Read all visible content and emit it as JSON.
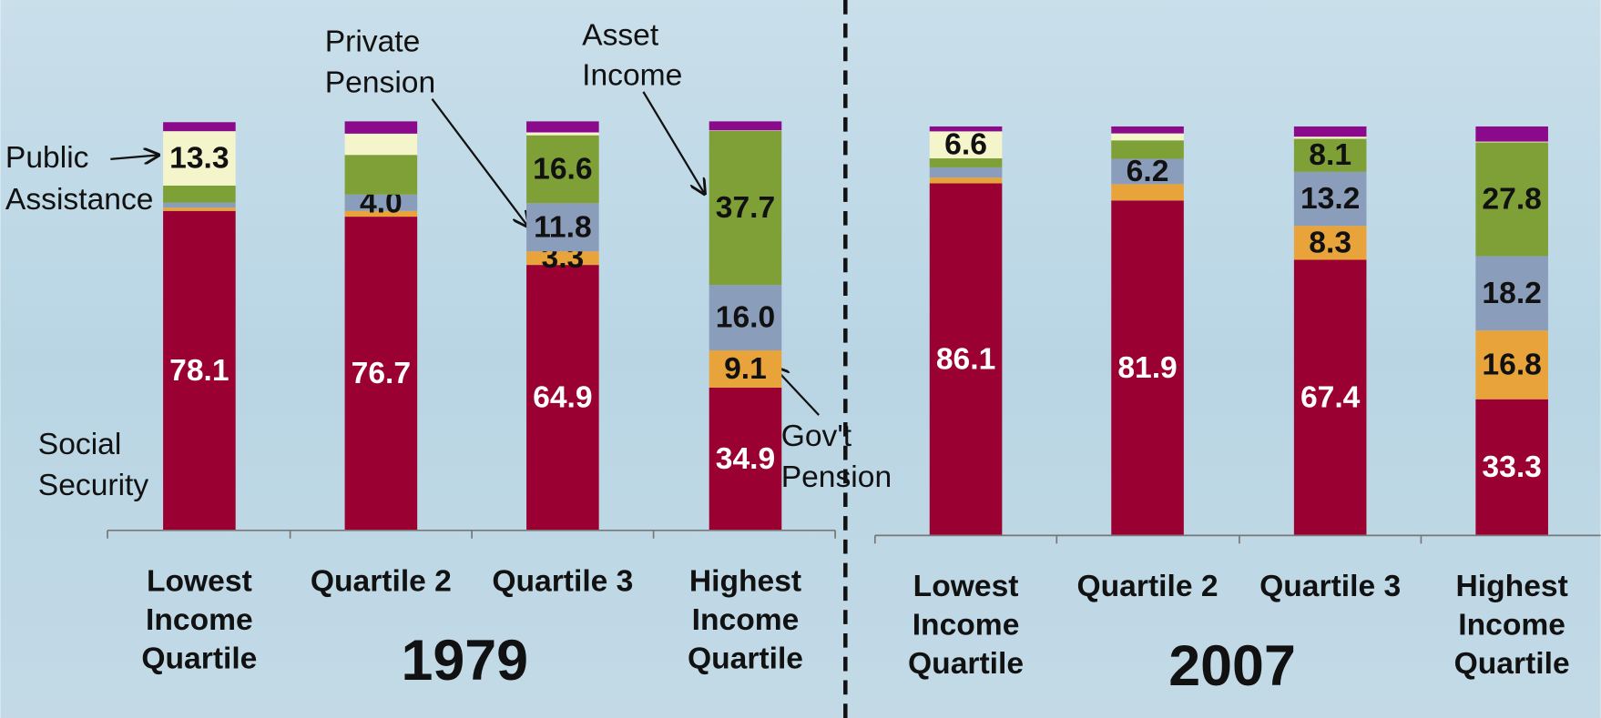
{
  "chart_data": [
    {
      "type": "stacked_bar",
      "title": "1979",
      "categories": [
        [
          "Lowest",
          "Income",
          "Quartile"
        ],
        [
          "Quartile 2"
        ],
        [
          "Quartile 3"
        ],
        [
          "Highest",
          "Income",
          "Quartile"
        ]
      ],
      "ylim": [
        0,
        100
      ],
      "series": [
        {
          "name": [
            "Social",
            "Security"
          ],
          "color": "#9b0032",
          "values": [
            78.1,
            76.7,
            64.9,
            34.9
          ],
          "value_labels": [
            "78.1",
            "76.7",
            "64.9",
            "34.9"
          ]
        },
        {
          "name": [
            "Gov't",
            "Pension"
          ],
          "color": "#e8a33a",
          "values": [
            0.8,
            1.4,
            3.3,
            9.1
          ],
          "value_labels": [
            null,
            null,
            "3.3",
            "9.1"
          ]
        },
        {
          "name": [
            "Private",
            "Pension"
          ],
          "color": "#8a9dba",
          "values": [
            1.2,
            4.0,
            11.8,
            16.0
          ],
          "value_labels": [
            null,
            "4.0",
            "11.8",
            "16.0"
          ]
        },
        {
          "name": [
            "Asset",
            "Income"
          ],
          "color": "#7ea037",
          "values": [
            4.2,
            9.7,
            16.6,
            37.7
          ],
          "value_labels": [
            null,
            null,
            "16.6",
            "37.7"
          ]
        },
        {
          "name": [
            "Public",
            "Assistance"
          ],
          "color": "#f5f5cc",
          "values": [
            13.3,
            5.2,
            0.7,
            0.1
          ],
          "value_labels": [
            "13.3",
            null,
            null,
            null
          ]
        },
        {
          "color": "#8b0a8b",
          "values": [
            2.2,
            3.0,
            2.7,
            2.2
          ]
        }
      ]
    },
    {
      "type": "stacked_bar",
      "title": "2007",
      "categories": [
        [
          "Lowest",
          "Income",
          "Quartile"
        ],
        [
          "Quartile 2"
        ],
        [
          "Quartile 3"
        ],
        [
          "Highest",
          "Income",
          "Quartile"
        ]
      ],
      "ylim": [
        0,
        100
      ],
      "series": [
        {
          "color": "#9b0032",
          "values": [
            86.1,
            81.9,
            67.4,
            33.3
          ],
          "value_labels": [
            "86.1",
            "81.9",
            "67.4",
            "33.3"
          ]
        },
        {
          "color": "#e8a33a",
          "values": [
            1.4,
            4.0,
            8.3,
            16.8
          ],
          "value_labels": [
            null,
            null,
            "8.3",
            "16.8"
          ]
        },
        {
          "color": "#8a9dba",
          "values": [
            2.5,
            6.2,
            13.2,
            18.2
          ],
          "value_labels": [
            null,
            "6.2",
            "13.2",
            "18.2"
          ]
        },
        {
          "color": "#7ea037",
          "values": [
            2.2,
            4.5,
            8.1,
            27.8
          ],
          "value_labels": [
            null,
            null,
            "8.1",
            "27.8"
          ]
        },
        {
          "color": "#f5f5cc",
          "values": [
            6.6,
            1.7,
            0.5,
            0.2
          ],
          "value_labels": [
            "6.6",
            null,
            null,
            null
          ]
        },
        {
          "color": "#8b0a8b",
          "values": [
            1.2,
            1.7,
            2.5,
            3.7
          ]
        }
      ]
    }
  ]
}
